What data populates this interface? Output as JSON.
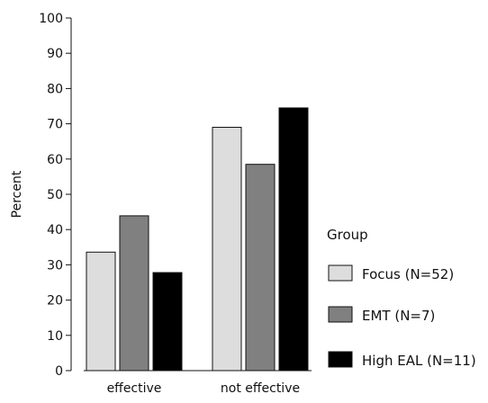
{
  "chart_data": {
    "type": "bar",
    "ylabel": "Percent",
    "xlabel": "",
    "ylim": [
      0,
      100
    ],
    "yticks": [
      0,
      10,
      20,
      30,
      40,
      50,
      60,
      70,
      80,
      90,
      100
    ],
    "categories": [
      "effective",
      "not effective"
    ],
    "legend_title": "Group",
    "legend_position": "right",
    "grid": false,
    "series": [
      {
        "name": "Focus (N=52)",
        "color": "#dddddd",
        "values": [
          33.6,
          69.0
        ]
      },
      {
        "name": "EMT (N=7)",
        "color": "#808080",
        "values": [
          43.9,
          58.5
        ]
      },
      {
        "name": "High EAL (N=11)",
        "color": "#000000",
        "values": [
          27.8,
          74.5
        ]
      }
    ]
  }
}
